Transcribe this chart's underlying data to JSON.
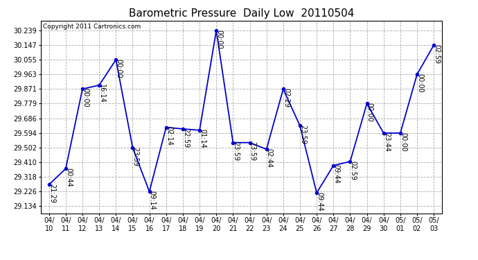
{
  "title": "Barometric Pressure  Daily Low  20110504",
  "copyright": "Copyright 2011 Cartronics.com",
  "x_labels": [
    "04/10",
    "04/11",
    "04/12",
    "04/13",
    "04/14",
    "04/15",
    "04/16",
    "04/17",
    "04/18",
    "04/19",
    "04/20",
    "04/21",
    "04/22",
    "04/23",
    "04/24",
    "04/25",
    "04/26",
    "04/27",
    "04/28",
    "04/29",
    "04/30",
    "05/01",
    "05/02",
    "05/03"
  ],
  "y_values": [
    29.27,
    29.37,
    29.871,
    29.895,
    30.055,
    29.502,
    29.226,
    29.63,
    29.62,
    29.612,
    30.239,
    29.534,
    29.534,
    29.492,
    29.871,
    29.64,
    29.218,
    29.39,
    29.415,
    29.779,
    29.594,
    29.594,
    29.963,
    30.147
  ],
  "point_labels": [
    "21:29",
    "00:44",
    "00:00",
    "16:14",
    "00:00",
    "23:59",
    "09:14",
    "02:14",
    "22:59",
    "01:14",
    "00:00",
    "23:59",
    "23:59",
    "02:44",
    "02:29",
    "23:59",
    "09:44",
    "09:44",
    "02:59",
    "00:00",
    "23:44",
    "00:00",
    "00:00",
    "02:59"
  ],
  "y_ticks": [
    29.134,
    29.226,
    29.318,
    29.41,
    29.502,
    29.594,
    29.686,
    29.779,
    29.871,
    29.963,
    30.055,
    30.147,
    30.239
  ],
  "y_min": 29.09,
  "y_max": 30.3,
  "line_color": "#0000CC",
  "marker_color": "#0000CC",
  "background_color": "#ffffff",
  "grid_color": "#aaaaaa",
  "title_fontsize": 11,
  "point_label_fontsize": 7,
  "tick_fontsize": 7,
  "copyright_fontsize": 6.5
}
